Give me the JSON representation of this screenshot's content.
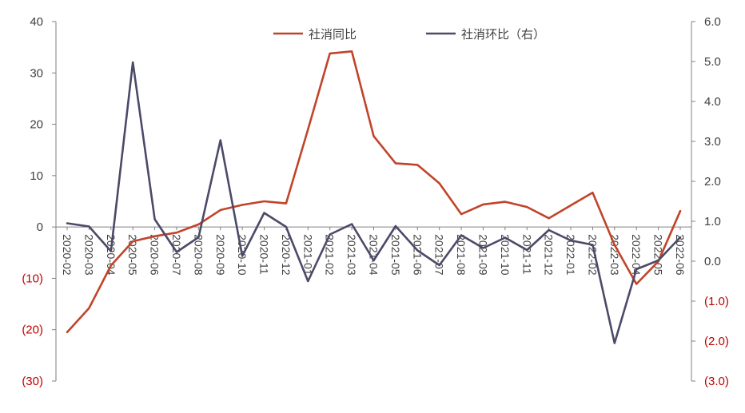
{
  "chart_data": {
    "type": "line",
    "categories": [
      "2020-02",
      "2020-03",
      "2020-04",
      "2020-05",
      "2020-06",
      "2020-07",
      "2020-08",
      "2020-09",
      "2020-10",
      "2020-11",
      "2020-12",
      "2021-01",
      "2021-02",
      "2021-03",
      "2021-04",
      "2021-05",
      "2021-06",
      "2021-07",
      "2021-08",
      "2021-09",
      "2021-10",
      "2021-11",
      "2021-12",
      "2022-01",
      "2022-02",
      "2022-03",
      "2022-04",
      "2022-05",
      "2022-06"
    ],
    "series": [
      {
        "name": "社消同比",
        "axis": "left",
        "color": "#C0442A",
        "values": [
          -20.5,
          -15.8,
          -7.5,
          -2.8,
          -1.8,
          -1.1,
          0.5,
          3.3,
          4.3,
          5.0,
          4.6,
          19.0,
          33.8,
          34.2,
          17.7,
          12.4,
          12.1,
          8.5,
          2.5,
          4.4,
          4.9,
          3.9,
          1.7,
          4.2,
          6.7,
          -3.5,
          -11.1,
          -6.7,
          3.1
        ]
      },
      {
        "name": "社消环比（右）",
        "axis": "right",
        "color": "#4B4A68",
        "values": [
          0.95,
          0.87,
          0.25,
          4.98,
          1.05,
          0.23,
          0.6,
          3.03,
          0.13,
          1.21,
          0.86,
          -0.5,
          0.67,
          0.93,
          0.02,
          0.88,
          0.27,
          -0.1,
          0.65,
          0.33,
          0.59,
          0.28,
          0.78,
          0.52,
          0.41,
          -2.05,
          -0.2,
          0.02,
          0.6
        ]
      }
    ],
    "y_left": {
      "ticks": [
        40,
        30,
        20,
        10,
        0,
        -10,
        -20,
        -30
      ],
      "tick_labels": [
        "40",
        "30",
        "20",
        "10",
        "0",
        "(10)",
        "(20)",
        "(30)"
      ],
      "ylim": [
        -30,
        40
      ]
    },
    "y_right": {
      "ticks": [
        6,
        5,
        4,
        3,
        2,
        1,
        0,
        -1,
        -2,
        -3
      ],
      "tick_labels": [
        "6.0",
        "5.0",
        "4.0",
        "3.0",
        "2.0",
        "1.0",
        "0.0",
        "(1.0)",
        "(2.0)",
        "(3.0)"
      ],
      "ylim": [
        -3,
        6
      ]
    },
    "legend_position": "top-center",
    "grid": false,
    "colors": {
      "negative_tick": "#C00000",
      "positive_tick": "#404040",
      "axis_line": "#808080"
    }
  }
}
